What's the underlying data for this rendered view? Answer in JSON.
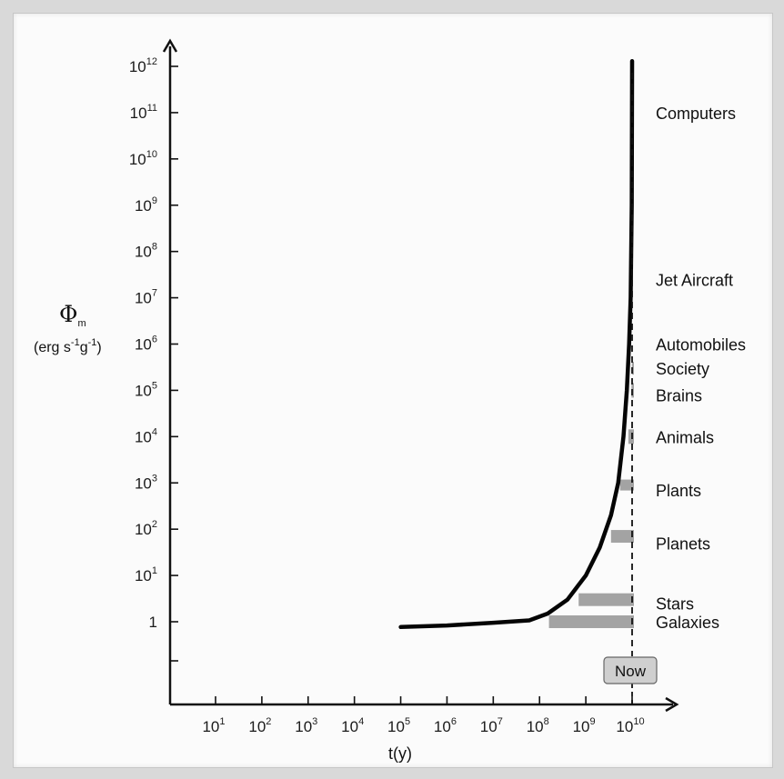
{
  "chart_data": {
    "type": "line",
    "xlabel": "t(y)",
    "ylabel": {
      "symbol": "Φ",
      "subscript": "m",
      "units": "(erg s-1g-1)",
      "units_parts": [
        "(erg s",
        "-1",
        "g",
        "-1",
        ")"
      ]
    },
    "x_scale": "log",
    "y_scale": "log",
    "x_ticks": [
      {
        "base": "10",
        "exp": "1",
        "value": 10
      },
      {
        "base": "10",
        "exp": "2",
        "value": 100
      },
      {
        "base": "10",
        "exp": "3",
        "value": 1000
      },
      {
        "base": "10",
        "exp": "4",
        "value": 10000
      },
      {
        "base": "10",
        "exp": "5",
        "value": 100000
      },
      {
        "base": "10",
        "exp": "6",
        "value": 1000000
      },
      {
        "base": "10",
        "exp": "7",
        "value": 10000000
      },
      {
        "base": "10",
        "exp": "8",
        "value": 100000000
      },
      {
        "base": "10",
        "exp": "9",
        "value": 1000000000
      },
      {
        "base": "10",
        "exp": "10",
        "value": 10000000000
      }
    ],
    "y_ticks": [
      {
        "base": "1",
        "exp": "",
        "value": 1
      },
      {
        "base": "10",
        "exp": "1",
        "value": 10
      },
      {
        "base": "10",
        "exp": "2",
        "value": 100
      },
      {
        "base": "10",
        "exp": "3",
        "value": 1000
      },
      {
        "base": "10",
        "exp": "4",
        "value": 10000
      },
      {
        "base": "10",
        "exp": "5",
        "value": 100000
      },
      {
        "base": "10",
        "exp": "6",
        "value": 1000000
      },
      {
        "base": "10",
        "exp": "7",
        "value": 10000000
      },
      {
        "base": "10",
        "exp": "8",
        "value": 100000000
      },
      {
        "base": "10",
        "exp": "9",
        "value": 1000000000
      },
      {
        "base": "10",
        "exp": "10",
        "value": 10000000000
      },
      {
        "base": "10",
        "exp": "11",
        "value": 100000000000
      },
      {
        "base": "10",
        "exp": "12",
        "value": 1000000000000
      }
    ],
    "series": [
      {
        "points": [
          {
            "x": 100000,
            "y": 0.77
          },
          {
            "x": 1000000,
            "y": 0.83
          },
          {
            "x": 10000000,
            "y": 0.95
          },
          {
            "x": 60000000,
            "y": 1.07
          },
          {
            "x": 150000000,
            "y": 1.5
          },
          {
            "x": 400000000,
            "y": 3
          },
          {
            "x": 1000000000,
            "y": 10
          },
          {
            "x": 2000000000,
            "y": 40
          },
          {
            "x": 3500000000,
            "y": 200
          },
          {
            "x": 5000000000,
            "y": 1000
          },
          {
            "x": 6500000000,
            "y": 10000
          },
          {
            "x": 7700000000,
            "y": 100000
          },
          {
            "x": 8600000000,
            "y": 1000000
          },
          {
            "x": 9300000000,
            "y": 10000000
          },
          {
            "x": 9800000000,
            "y": 1000000000
          },
          {
            "x": 10000000000,
            "y": 1300000000000
          }
        ]
      }
    ],
    "bands": [
      {
        "label": "Galaxies",
        "x_start": 160000000,
        "x_end": 10000000000,
        "y": 1
      },
      {
        "label": "Stars",
        "x_start": 700000000,
        "x_end": 10000000000,
        "y": 3
      },
      {
        "label": "Planets",
        "x_start": 3500000000,
        "x_end": 10000000000,
        "y": 70
      },
      {
        "label": "Plants",
        "x_start": 5500000000,
        "x_end": 10000000000,
        "y": 900
      },
      {
        "label": "Animals",
        "x_start": 8300000000,
        "x_end": 10000000000,
        "y": 10000
      },
      {
        "label": "Brains",
        "x_start": 9700000000,
        "x_end": 10000000000,
        "y": 100000
      },
      {
        "label": "Society",
        "x_start": 9850000000,
        "x_end": 10000000000,
        "y": 300000
      }
    ],
    "annotations": [
      {
        "label": "Computers",
        "y": 100000000000
      },
      {
        "label": "Jet Aircraft",
        "y": 25000000
      },
      {
        "label": "Automobiles",
        "y": 1000000
      },
      {
        "label": "Society",
        "y": 300000
      },
      {
        "label": "Brains",
        "y": 80000
      },
      {
        "label": "Animals",
        "y": 10000
      },
      {
        "label": "Plants",
        "y": 700
      },
      {
        "label": "Planets",
        "y": 50
      },
      {
        "label": "Stars",
        "y": 2.5
      },
      {
        "label": "Galaxies",
        "y": 1
      }
    ],
    "now_marker": {
      "label": "Now",
      "x": 10000000000
    },
    "colors": {
      "curve": "#050505",
      "band": "#a3a3a3",
      "axis": "#111111",
      "now_box": "#cfcfcf"
    }
  }
}
